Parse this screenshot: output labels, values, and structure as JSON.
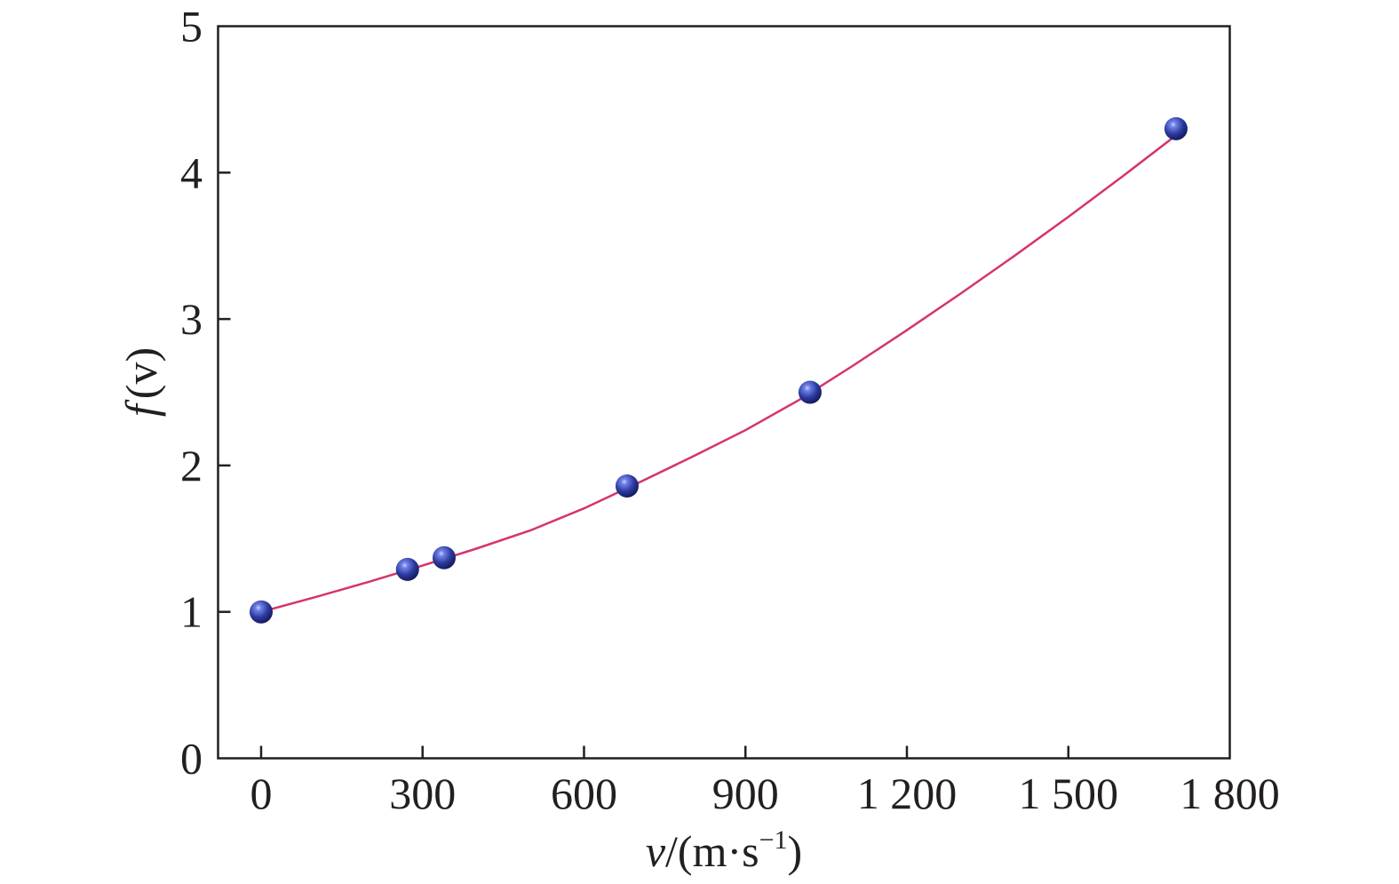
{
  "chart_data": {
    "type": "scatter",
    "xlabel": {
      "var": "v",
      "unit_prefix": "/(m·s",
      "unit_exp": "−1",
      "unit_suffix": ")"
    },
    "ylabel": {
      "func": "f",
      "arg": "(v)"
    },
    "xlim": [
      -80,
      1800
    ],
    "ylim": [
      0,
      5
    ],
    "x_ticks": [
      {
        "value": 0,
        "label": "0"
      },
      {
        "value": 300,
        "label": "300"
      },
      {
        "value": 600,
        "label": "600"
      },
      {
        "value": 900,
        "label": "900"
      },
      {
        "value": 1200,
        "label": "1 200"
      },
      {
        "value": 1500,
        "label": "1 500"
      },
      {
        "value": 1800,
        "label": "1 800"
      }
    ],
    "y_ticks": [
      {
        "value": 0,
        "label": "0"
      },
      {
        "value": 1,
        "label": "1"
      },
      {
        "value": 2,
        "label": "2"
      },
      {
        "value": 3,
        "label": "3"
      },
      {
        "value": 4,
        "label": "4"
      },
      {
        "value": 5,
        "label": "5"
      }
    ],
    "grid": false,
    "legend": "none",
    "series": [
      {
        "kind": "points",
        "color": "#2b3a9e",
        "points": [
          {
            "x": 0,
            "y": 1.0
          },
          {
            "x": 272,
            "y": 1.29
          },
          {
            "x": 340,
            "y": 1.37
          },
          {
            "x": 680,
            "y": 1.86
          },
          {
            "x": 1020,
            "y": 2.5
          },
          {
            "x": 1700,
            "y": 4.3
          }
        ]
      },
      {
        "kind": "fit-curve",
        "color": "#d6336c",
        "points": [
          {
            "x": 0,
            "y": 1.0
          },
          {
            "x": 100,
            "y": 1.1
          },
          {
            "x": 200,
            "y": 1.205
          },
          {
            "x": 300,
            "y": 1.316
          },
          {
            "x": 400,
            "y": 1.432
          },
          {
            "x": 500,
            "y": 1.556
          },
          {
            "x": 600,
            "y": 1.707
          },
          {
            "x": 700,
            "y": 1.879
          },
          {
            "x": 800,
            "y": 2.057
          },
          {
            "x": 900,
            "y": 2.241
          },
          {
            "x": 1000,
            "y": 2.448
          },
          {
            "x": 1100,
            "y": 2.682
          },
          {
            "x": 1200,
            "y": 2.924
          },
          {
            "x": 1300,
            "y": 3.174
          },
          {
            "x": 1400,
            "y": 3.432
          },
          {
            "x": 1500,
            "y": 3.698
          },
          {
            "x": 1600,
            "y": 3.972
          },
          {
            "x": 1700,
            "y": 4.254
          }
        ]
      }
    ]
  }
}
